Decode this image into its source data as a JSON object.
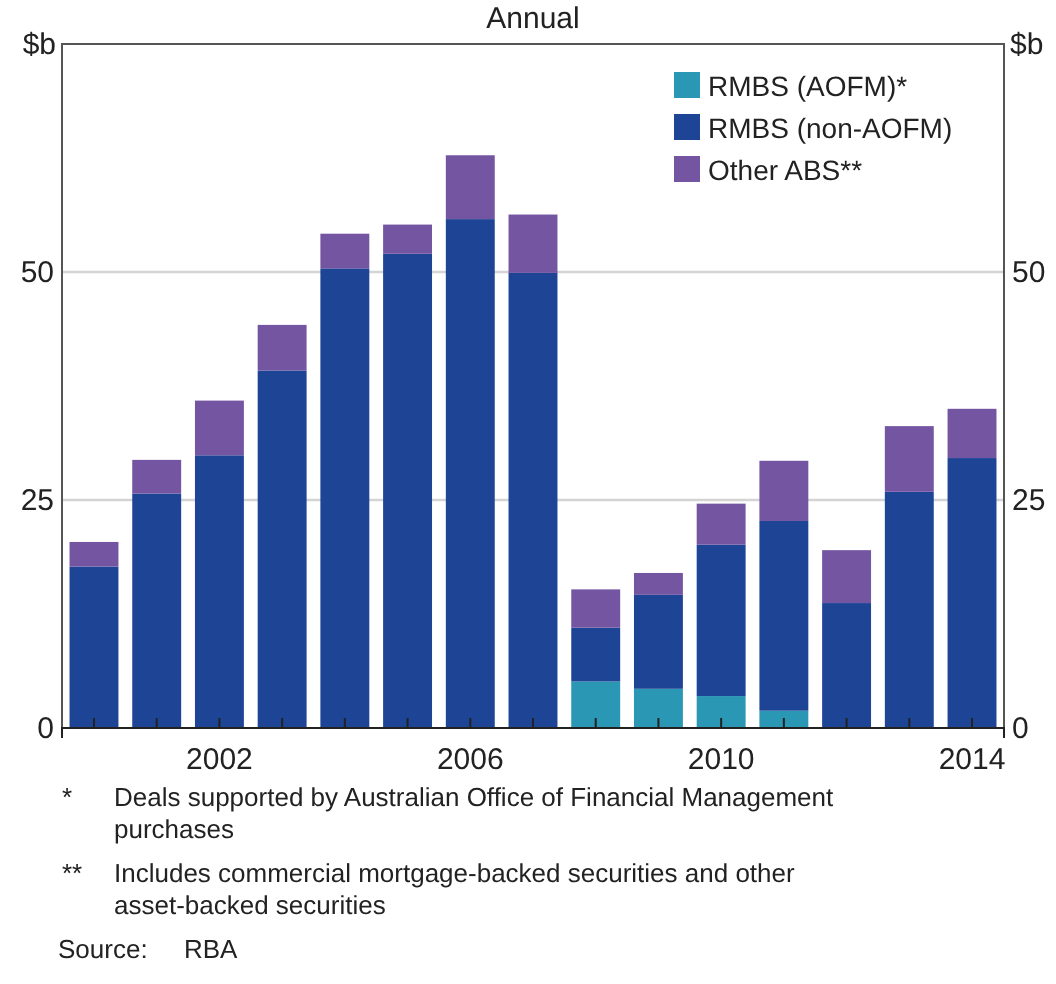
{
  "chart_data": {
    "type": "bar",
    "title": "Annual",
    "ylabel": "$b",
    "y2label": "$b",
    "categories": [
      null,
      null,
      "2002",
      null,
      null,
      null,
      "2006",
      null,
      null,
      null,
      "2010",
      null,
      null,
      null,
      "2014"
    ],
    "stacked": true,
    "series": [
      {
        "name": "RMBS (AOFM)*",
        "color": "#2a97b4",
        "values": [
          0,
          0,
          0,
          0,
          0,
          0,
          0,
          0,
          5.1,
          4.3,
          3.5,
          1.9,
          0,
          0,
          0
        ]
      },
      {
        "name": "RMBS (non-AOFM)",
        "color": "#1e4496",
        "values": [
          17.7,
          25.7,
          29.9,
          39.2,
          50.4,
          52.0,
          55.8,
          49.9,
          5.9,
          10.3,
          16.6,
          20.8,
          13.7,
          25.9,
          29.6
        ]
      },
      {
        "name": "Other ABS**",
        "color": "#7455a2",
        "values": [
          2.7,
          3.7,
          6.0,
          5.0,
          3.8,
          3.2,
          7.0,
          6.4,
          4.2,
          2.4,
          4.5,
          6.6,
          5.8,
          7.2,
          5.4
        ]
      }
    ],
    "ylim": [
      0,
      75
    ],
    "yticks": [
      0,
      25,
      50
    ],
    "y2lim": [
      0,
      75
    ],
    "y2ticks": [
      0,
      25,
      50
    ],
    "grid": "y",
    "legend": "top right",
    "annotations": [
      "*\tDeals supported by Australian Office of Financial Management purchases",
      "**\tIncludes commercial mortgage-backed securities and other asset-backed securities",
      "Source:\tRBA"
    ]
  }
}
